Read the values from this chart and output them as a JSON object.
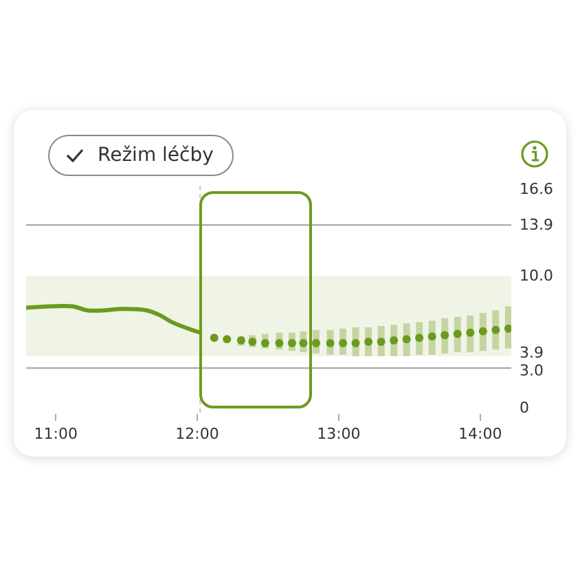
{
  "chart_data": {
    "type": "line",
    "annotations": [
      "Režim léčby"
    ],
    "xlim": [
      10.79,
      14.22
    ],
    "xticks": [
      {
        "value": 11,
        "label": "11:00"
      },
      {
        "value": 12,
        "label": "12:00"
      },
      {
        "value": 13,
        "label": "13:00"
      },
      {
        "value": 14,
        "label": "14:00"
      }
    ],
    "ylim": [
      -0.4,
      16.9
    ],
    "yticks": [
      16.6,
      13.9,
      {
        "value": 10,
        "label": "10.0"
      },
      3.9,
      {
        "value": 3,
        "label": "3.0"
      },
      0
    ],
    "grid": false,
    "series": [
      {
        "color": "#6b9a1e",
        "x": [
          10.79,
          10.96,
          11.12,
          11.22,
          11.35,
          11.46,
          11.64,
          11.74,
          11.82,
          12.02
        ],
        "values": [
          7.6,
          7.7,
          7.7,
          7.4,
          7.4,
          7.5,
          7.4,
          7.0,
          6.5,
          5.7
        ]
      },
      {
        "type": "scatter",
        "color": "#6b9a1e",
        "x": [
          12.12,
          12.21,
          12.31,
          12.39,
          12.48,
          12.58,
          12.67,
          12.75,
          12.84,
          12.94,
          13.03,
          13.12,
          13.21,
          13.3,
          13.39,
          13.48,
          13.57,
          13.66,
          13.75,
          13.84,
          13.93,
          14.02,
          14.11,
          14.2
        ],
        "values": [
          5.3,
          5.2,
          5.1,
          5.0,
          4.9,
          4.9,
          4.9,
          4.9,
          4.9,
          4.9,
          4.9,
          4.9,
          5.0,
          5.0,
          5.1,
          5.2,
          5.3,
          5.4,
          5.5,
          5.6,
          5.7,
          5.8,
          5.9,
          6.0
        ],
        "errors": [
          null,
          null,
          [
            4.7,
            5.4
          ],
          [
            4.6,
            5.5
          ],
          [
            4.5,
            5.6
          ],
          [
            4.4,
            5.7
          ],
          [
            4.3,
            5.7
          ],
          [
            4.2,
            5.8
          ],
          [
            4.1,
            5.9
          ],
          [
            4.0,
            5.9
          ],
          [
            4.0,
            6.0
          ],
          [
            3.9,
            6.1
          ],
          [
            3.9,
            6.1
          ],
          [
            3.9,
            6.2
          ],
          [
            3.9,
            6.3
          ],
          [
            3.9,
            6.4
          ],
          [
            4.0,
            6.5
          ],
          [
            4.0,
            6.6
          ],
          [
            4.1,
            6.8
          ],
          [
            4.2,
            6.9
          ],
          [
            4.2,
            7.0
          ],
          [
            4.3,
            7.2
          ],
          [
            4.4,
            7.4
          ],
          [
            4.5,
            7.7
          ]
        ]
      }
    ],
    "bands": [
      {
        "axis": "y",
        "from": 3.9,
        "to": 10,
        "color": "#f0f4e6"
      }
    ],
    "ref_lines": [
      {
        "axis": "y",
        "value": 13.9,
        "color": "#9e9e9e"
      },
      {
        "axis": "y",
        "value": 3,
        "color": "#9e9e9e"
      },
      {
        "axis": "x",
        "value": 12.02,
        "color": "#c4c4c4",
        "line_style": "dotted"
      }
    ]
  }
}
